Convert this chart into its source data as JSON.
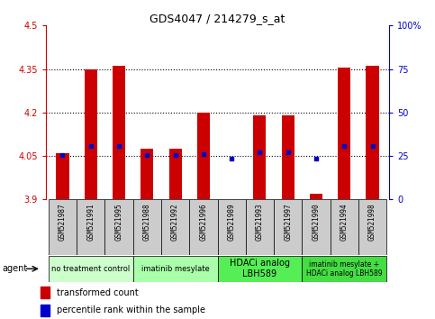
{
  "title": "GDS4047 / 214279_s_at",
  "samples": [
    "GSM521987",
    "GSM521991",
    "GSM521995",
    "GSM521988",
    "GSM521992",
    "GSM521996",
    "GSM521989",
    "GSM521993",
    "GSM521997",
    "GSM521990",
    "GSM521994",
    "GSM521998"
  ],
  "bar_values": [
    4.06,
    4.35,
    4.36,
    4.075,
    4.075,
    4.2,
    3.902,
    4.19,
    4.19,
    3.92,
    4.355,
    4.36
  ],
  "bar_bottom": 3.9,
  "blue_dots_y": [
    4.053,
    4.083,
    4.083,
    4.053,
    4.053,
    4.057,
    4.04,
    4.063,
    4.063,
    4.04,
    4.083,
    4.083
  ],
  "ylim": [
    3.9,
    4.5
  ],
  "yticks": [
    3.9,
    4.05,
    4.2,
    4.35,
    4.5
  ],
  "ytick_labels": [
    "3.9",
    "4.05",
    "4.2",
    "4.35",
    "4.5"
  ],
  "y2lim": [
    0,
    100
  ],
  "y2ticks": [
    0,
    25,
    50,
    75,
    100
  ],
  "y2tick_labels": [
    "0",
    "25",
    "50",
    "75",
    "100%"
  ],
  "bar_color": "#cc0000",
  "dot_color": "#0000cc",
  "agent_groups": [
    {
      "label": "no treatment control",
      "spans": [
        0,
        2
      ],
      "color": "#ccffcc",
      "fontsize": 6
    },
    {
      "label": "imatinib mesylate",
      "spans": [
        3,
        5
      ],
      "color": "#aaffaa",
      "fontsize": 6
    },
    {
      "label": "HDACi analog\nLBH589",
      "spans": [
        6,
        8
      ],
      "color": "#55ee55",
      "fontsize": 7
    },
    {
      "label": "imatinib mesylate +\nHDACi analog LBH589",
      "spans": [
        9,
        11
      ],
      "color": "#44dd44",
      "fontsize": 5.5
    }
  ],
  "left_color": "#cc0000",
  "right_color": "#0000cc",
  "sample_box_color": "#cccccc",
  "grid_yticks": [
    4.05,
    4.2,
    4.35
  ]
}
